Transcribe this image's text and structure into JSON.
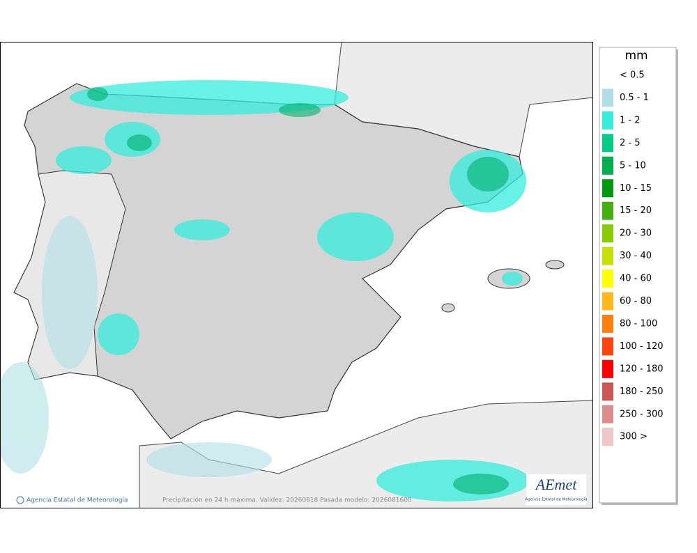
{
  "legend": {
    "title": "mm",
    "items": [
      {
        "label": "< 0.5"
      },
      {
        "label": "0.5 - 1",
        "color": "#b0e0e6"
      },
      {
        "label": "1 - 2",
        "color": "#36ecdc"
      },
      {
        "label": "2 - 5",
        "color": "#00cc88"
      },
      {
        "label": "5 - 10",
        "color": "#00b050"
      },
      {
        "label": "10 - 15",
        "color": "#009a10"
      },
      {
        "label": "15 - 20",
        "color": "#44b010"
      },
      {
        "label": "20 - 30",
        "color": "#88cc00"
      },
      {
        "label": "30 - 40",
        "color": "#c8e000"
      },
      {
        "label": "40 - 60",
        "color": "#ffff00"
      },
      {
        "label": "60 - 80",
        "color": "#ffb81c"
      },
      {
        "label": "80 - 100",
        "color": "#ff8010"
      },
      {
        "label": "100 - 120",
        "color": "#ff4410"
      },
      {
        "label": "120 - 180",
        "color": "#ff0000"
      },
      {
        "label": "180 - 250",
        "color": "#cc5555"
      },
      {
        "label": "250 - 300",
        "color": "#dd8c8c"
      },
      {
        "label": "300 >",
        "color": "#eec8c8"
      }
    ]
  },
  "footer": {
    "credit": "Agencia Estatal de Meteorología",
    "caption": "Precipitación en 24 h máxima. Validez: 20260818 Pasada modelo: 2026081600"
  },
  "logo": {
    "name": "AEmet",
    "subtitle": "Agencia Estatal de Meteorología"
  }
}
